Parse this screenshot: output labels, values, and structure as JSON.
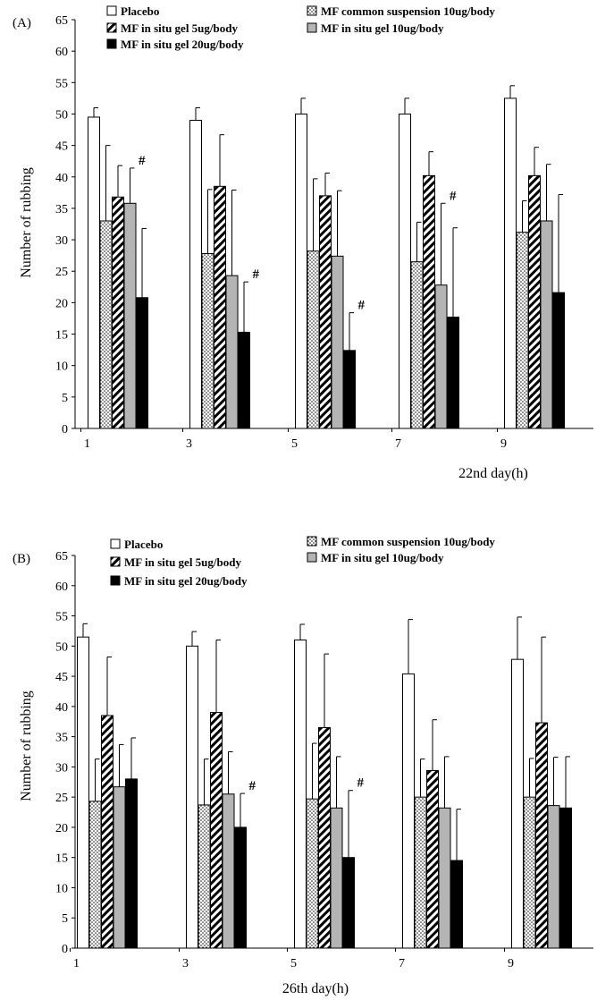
{
  "chart_data": [
    {
      "type": "bar",
      "panel_label": "(A)",
      "title": "",
      "xlabel": "22nd day(h)",
      "ylabel": "Number of rubbing",
      "ylim": [
        0,
        65
      ],
      "yticks": [
        "0",
        "5",
        "10",
        "15",
        "20",
        "25",
        "30",
        "35",
        "40",
        "45",
        "50",
        "55",
        "60",
        "65"
      ],
      "categories": [
        "1",
        "3",
        "5",
        "7",
        "9"
      ],
      "legend_position": "top",
      "series": [
        {
          "name": "Placebo",
          "pattern": "open",
          "values": [
            49.5,
            49.0,
            50.0,
            50.0,
            52.5
          ],
          "errors": [
            1.5,
            2.0,
            2.5,
            2.5,
            2.0
          ]
        },
        {
          "name": "MF common suspension 10ug/body",
          "pattern": "dotted",
          "values": [
            33.0,
            27.8,
            28.2,
            26.5,
            31.2
          ],
          "errors": [
            12.0,
            10.2,
            11.5,
            6.3,
            5.0
          ]
        },
        {
          "name": "MF in situ gel 5ug/body",
          "pattern": "hatched",
          "values": [
            36.8,
            38.5,
            37.0,
            40.2,
            40.2
          ],
          "errors": [
            5.0,
            8.2,
            3.6,
            3.8,
            4.5
          ]
        },
        {
          "name": "MF in situ gel 10ug/body",
          "pattern": "grey",
          "values": [
            35.8,
            24.3,
            27.4,
            22.8,
            33.0
          ],
          "errors": [
            5.6,
            13.6,
            10.4,
            13.0,
            9.0
          ]
        },
        {
          "name": "MF in situ gel 20ug/body",
          "pattern": "black",
          "values": [
            20.8,
            15.3,
            12.4,
            17.7,
            21.6
          ],
          "errors": [
            11.0,
            8.0,
            6.0,
            14.2,
            15.6
          ]
        }
      ],
      "annotations": [
        {
          "text": "#",
          "category": "1",
          "series": "MF in situ gel 10ug/body"
        },
        {
          "text": "#",
          "category": "3",
          "series": "MF in situ gel 20ug/body"
        },
        {
          "text": "#",
          "category": "5",
          "series": "MF in situ gel 20ug/body"
        },
        {
          "text": "#",
          "category": "7",
          "series": "MF in situ gel 10ug/body"
        }
      ]
    },
    {
      "type": "bar",
      "panel_label": "(B)",
      "title": "",
      "xlabel": "26th day(h)",
      "ylabel": "Number of rubbing",
      "ylim": [
        0,
        65
      ],
      "yticks": [
        "0",
        "5",
        "10",
        "15",
        "20",
        "25",
        "30",
        "35",
        "40",
        "45",
        "50",
        "55",
        "60",
        "65"
      ],
      "categories": [
        "1",
        "3",
        "5",
        "7",
        "9"
      ],
      "legend_position": "top",
      "series": [
        {
          "name": "Placebo",
          "pattern": "open",
          "values": [
            51.5,
            50.0,
            51.0,
            45.4,
            47.8
          ],
          "errors": [
            2.2,
            2.4,
            2.6,
            9.0,
            7.0
          ]
        },
        {
          "name": "MF common suspension 10ug/body",
          "pattern": "dotted",
          "values": [
            24.3,
            23.7,
            24.7,
            25.0,
            25.0
          ],
          "errors": [
            7.0,
            7.6,
            9.2,
            6.3,
            6.4
          ]
        },
        {
          "name": "MF in situ gel 5ug/body",
          "pattern": "hatched",
          "values": [
            38.5,
            39.0,
            36.5,
            29.4,
            37.3
          ],
          "errors": [
            9.7,
            12.0,
            12.2,
            8.4,
            14.2
          ]
        },
        {
          "name": "MF in situ gel 10ug/body",
          "pattern": "grey",
          "values": [
            26.7,
            25.5,
            23.2,
            23.2,
            23.6
          ],
          "errors": [
            7.0,
            7.0,
            8.5,
            8.5,
            8.0
          ]
        },
        {
          "name": "MF in situ gel 20ug/body",
          "pattern": "black",
          "values": [
            28.0,
            20.0,
            15.0,
            14.5,
            23.2
          ],
          "errors": [
            6.8,
            5.6,
            11.1,
            8.5,
            8.5
          ]
        }
      ],
      "annotations": [
        {
          "text": "#",
          "category": "3",
          "series": "MF in situ gel 20ug/body"
        },
        {
          "text": "#",
          "category": "5",
          "series": "MF in situ gel 20ug/body"
        }
      ]
    }
  ]
}
